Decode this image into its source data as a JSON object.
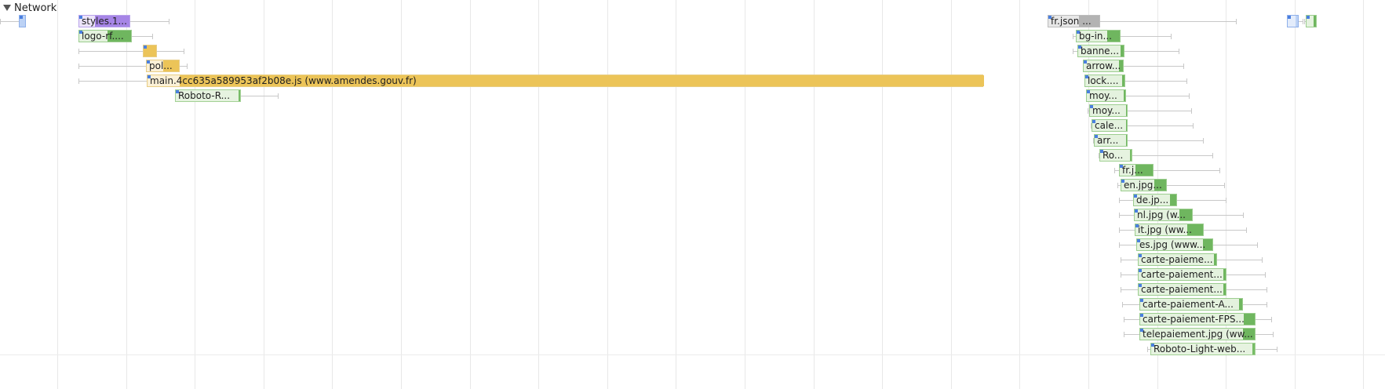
{
  "section": {
    "title": "Network",
    "icon": "disclosure-triangle-down-icon"
  },
  "resource_colors": {
    "css": "#a685e6",
    "image": "#6fb65f",
    "script": "#ecc458",
    "font": "#77bc67",
    "data": "#b3b3b3",
    "document": "#bcd2f5"
  },
  "requests": [
    {
      "label": "",
      "type": "doc"
    },
    {
      "label": "styles.1...",
      "type": "css"
    },
    {
      "label": "logo-rf....",
      "type": "img"
    },
    {
      "label": "",
      "type": "js"
    },
    {
      "label": "pol...",
      "type": "js"
    },
    {
      "label": "main.4cc635a589953af2b08e.js (www.amendes.gouv.fr)",
      "type": "js"
    },
    {
      "label": "Roboto-R...",
      "type": "font"
    },
    {
      "label": "fr.json ...",
      "type": "data"
    },
    {
      "label": "bg-in...",
      "type": "img"
    },
    {
      "label": "banne...",
      "type": "img"
    },
    {
      "label": "arrow...",
      "type": "img"
    },
    {
      "label": "lock....",
      "type": "img"
    },
    {
      "label": "moy...",
      "type": "img"
    },
    {
      "label": "moy...",
      "type": "img"
    },
    {
      "label": "cale...",
      "type": "img"
    },
    {
      "label": "arr...",
      "type": "img"
    },
    {
      "label": "Ro...",
      "type": "font"
    },
    {
      "label": "fr.j...",
      "type": "img"
    },
    {
      "label": "en.jpg...",
      "type": "img"
    },
    {
      "label": "de.jp...",
      "type": "img"
    },
    {
      "label": "nl.jpg (w...",
      "type": "img"
    },
    {
      "label": "it.jpg (ww...",
      "type": "img"
    },
    {
      "label": "es.jpg (www...",
      "type": "img"
    },
    {
      "label": "carte-paieme...",
      "type": "img"
    },
    {
      "label": "carte-paiement...",
      "type": "img"
    },
    {
      "label": "carte-paiement...",
      "type": "img"
    },
    {
      "label": "carte-paiement-A...",
      "type": "img"
    },
    {
      "label": "carte-paiement-FPS...",
      "type": "img"
    },
    {
      "label": "telepaiement.jpg (ww...",
      "type": "img"
    },
    {
      "label": "Roboto-Light-web...",
      "type": "font"
    },
    {
      "label": "",
      "type": "doc"
    },
    {
      "label": "",
      "type": "img"
    }
  ]
}
